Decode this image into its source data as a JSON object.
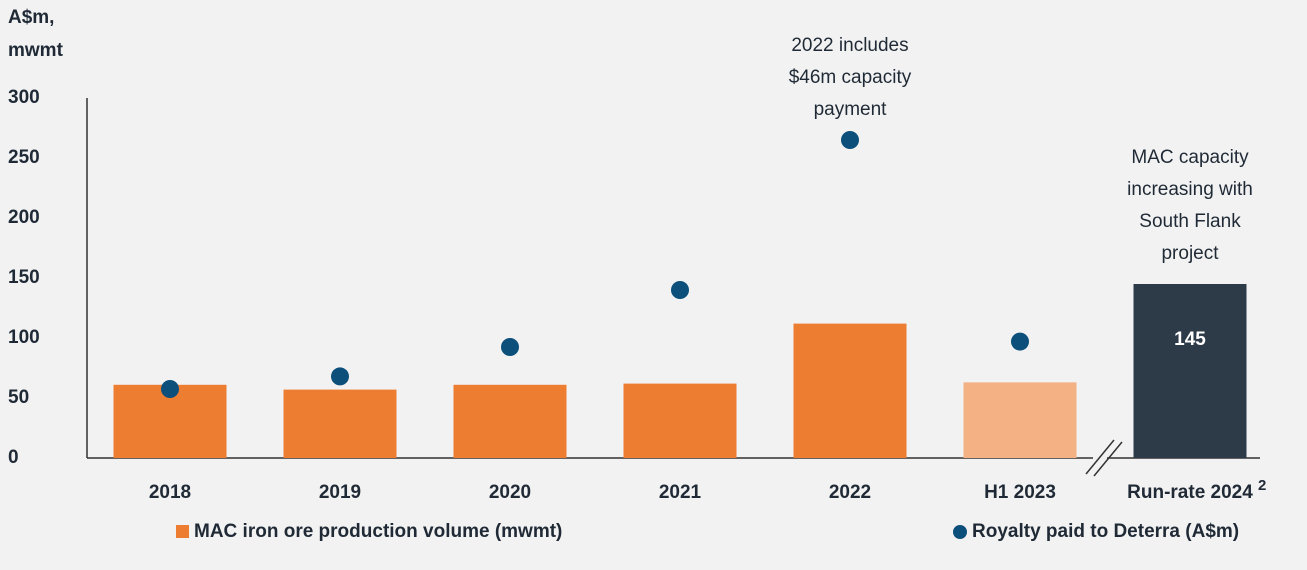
{
  "chart_data": {
    "type": "bar",
    "y_label": [
      "A$m,",
      "mwmt"
    ],
    "categories": [
      "2018",
      "2019",
      "2020",
      "2021",
      "2022",
      "H1 2023",
      "Run-rate 2024"
    ],
    "category_footnote": "2",
    "ylim": [
      0,
      300
    ],
    "yticks": [
      0,
      50,
      100,
      150,
      200,
      250,
      300
    ],
    "grid": false,
    "series": [
      {
        "name": "MAC iron ore production volume (mwmt)",
        "kind": "bar",
        "color": "#ed7d31",
        "colors": [
          "#ed7d31",
          "#ed7d31",
          "#ed7d31",
          "#ed7d31",
          "#ed7d31",
          "#f4b183",
          "#2d3a48"
        ],
        "values": [
          61,
          57,
          61,
          62,
          112,
          63,
          145
        ],
        "value_labels": [
          null,
          null,
          null,
          null,
          null,
          null,
          "145"
        ]
      },
      {
        "name": "Royalty paid to Deterra (A$m)",
        "kind": "dot",
        "color": "#0b4f7a",
        "values": [
          57.5,
          68,
          92.5,
          140,
          265,
          97,
          null
        ]
      }
    ],
    "annotations": [
      {
        "category": 4,
        "lines": [
          "2022 includes",
          "$46m capacity",
          "payment"
        ]
      },
      {
        "category": 6,
        "lines": [
          "MAC capacity",
          "increasing with",
          "South Flank",
          "project"
        ]
      }
    ]
  }
}
